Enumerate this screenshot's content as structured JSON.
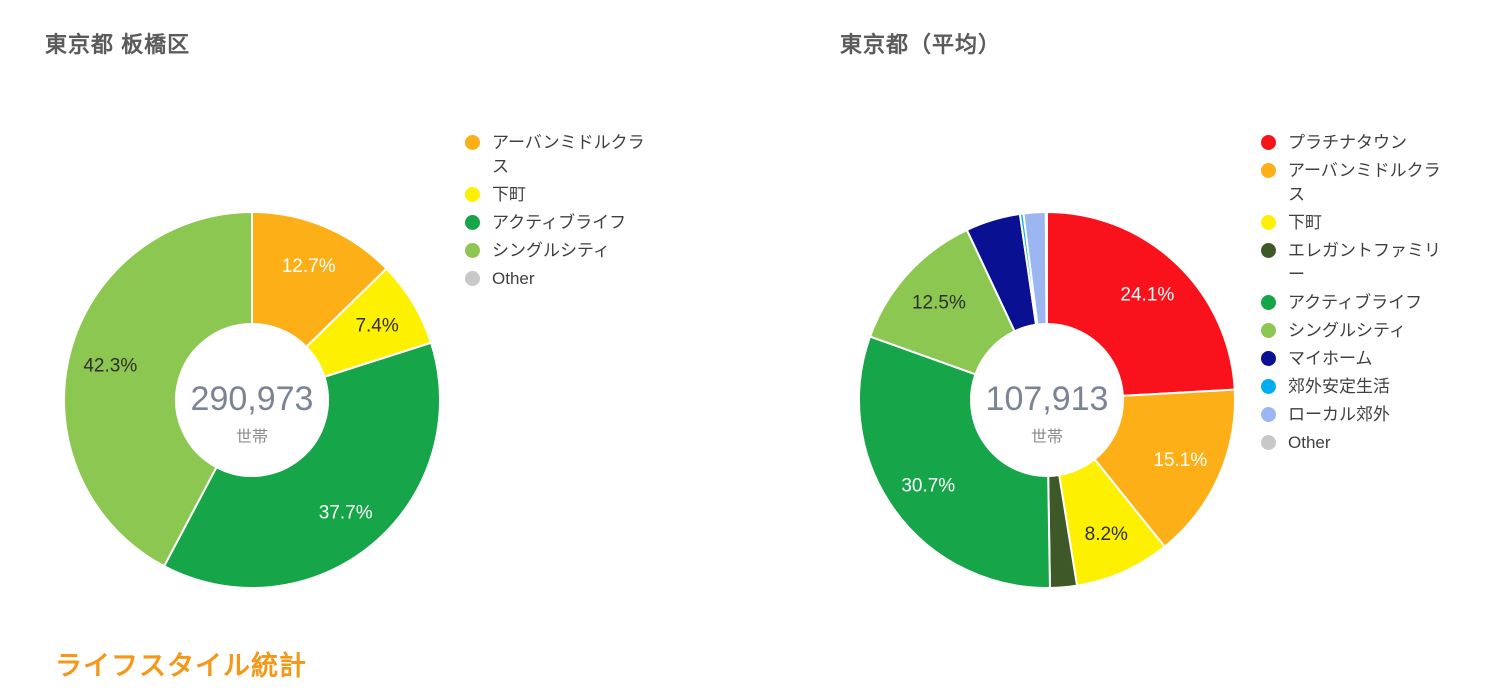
{
  "page": {
    "background": "#FFFFFF",
    "footer": {
      "label": "ライフスタイル統計",
      "color": "#F49819"
    }
  },
  "style": {
    "title_color": "#5B5B5B",
    "center_value_color": "#7A8494",
    "center_unit_color": "#8C8C8C",
    "legend_text_color": "#3F3F3F",
    "slice_border_color": "#FFFFFF"
  },
  "chart_data": [
    {
      "type": "pie",
      "donut": true,
      "title": "東京都 板橋区",
      "center_label": {
        "value": "290,973",
        "unit": "世帯"
      },
      "legend_position": "right",
      "start_angle_deg": 0,
      "slices": [
        {
          "label": "アーバンミドルクラス",
          "value": 12.7,
          "color": "#FCAF17",
          "text_color": "#FFFFFF",
          "show_label": true
        },
        {
          "label": "下町",
          "value": 7.4,
          "color": "#FDF000",
          "text_color": "#2E2E2E",
          "show_label": true
        },
        {
          "label": "アクティブライフ",
          "value": 37.7,
          "color": "#17A549",
          "text_color": "#FFFFFF",
          "show_label": true
        },
        {
          "label": "シングルシティ",
          "value": 42.3,
          "color": "#8CC751",
          "text_color": "#2E2E2E",
          "show_label": true
        },
        {
          "label": "Other",
          "value": 0.0,
          "color": "#C8C8C8",
          "text_color": "#2E2E2E",
          "show_label": false
        }
      ]
    },
    {
      "type": "pie",
      "donut": true,
      "title": "東京都（平均）",
      "center_label": {
        "value": "107,913",
        "unit": "世帯"
      },
      "legend_position": "right",
      "start_angle_deg": 0,
      "slices": [
        {
          "label": "プラチナタウン",
          "value": 24.1,
          "color": "#F9121B",
          "text_color": "#FFFFFF",
          "show_label": true
        },
        {
          "label": "アーバンミドルクラス",
          "value": 15.1,
          "color": "#FCAF17",
          "text_color": "#FFFFFF",
          "show_label": true
        },
        {
          "label": "下町",
          "value": 8.2,
          "color": "#FDF000",
          "text_color": "#2E2E2E",
          "show_label": true
        },
        {
          "label": "エレガントファミリー",
          "value": 2.3,
          "color": "#3E5827",
          "text_color": "#FFFFFF",
          "show_label": false
        },
        {
          "label": "アクティブライフ",
          "value": 30.7,
          "color": "#17A549",
          "text_color": "#FFFFFF",
          "show_label": true
        },
        {
          "label": "シングルシティ",
          "value": 12.5,
          "color": "#8CC751",
          "text_color": "#2E2E2E",
          "show_label": true
        },
        {
          "label": "マイホーム",
          "value": 4.7,
          "color": "#0A1092",
          "text_color": "#FFFFFF",
          "show_label": false
        },
        {
          "label": "郊外安定生活",
          "value": 0.3,
          "color": "#00AEEF",
          "text_color": "#2E2E2E",
          "show_label": false
        },
        {
          "label": "ローカル郊外",
          "value": 1.9,
          "color": "#9CB6F1",
          "text_color": "#2E2E2E",
          "show_label": false
        },
        {
          "label": "Other",
          "value": 0.1,
          "color": "#C8C8C8",
          "text_color": "#2E2E2E",
          "show_label": false
        }
      ]
    }
  ]
}
